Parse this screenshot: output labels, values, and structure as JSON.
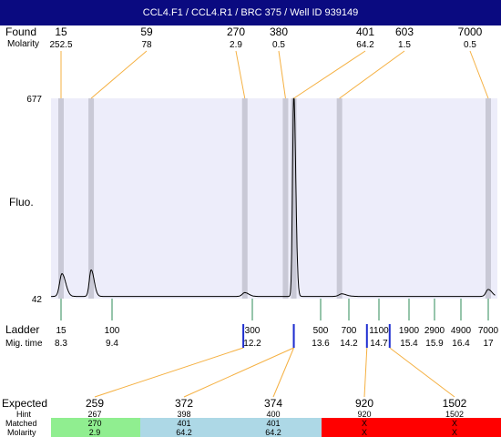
{
  "title": "CCL4.F1 / CCL4.R1 / BRC 375 / Well ID 939149",
  "found_label": "Found",
  "found_molarity_label": "Molarity",
  "fluo_label": "Fluo.",
  "ladder_label": "Ladder",
  "migtime_label": "Mig. time",
  "expected_label": "Expected",
  "hint_label": "Hint",
  "matched_label": "Matched",
  "molarity_label": "Molarity",
  "colors": {
    "title_bg": "#0a0a80",
    "plot_bg": "#ededfa",
    "band": "#c9c9d6",
    "leader": "#f5b041",
    "ladder_tick": "#2e8b57",
    "ladder_marker": "#1f2fd0",
    "matched_green": "#90ee90",
    "matched_blue": "#add8e6",
    "matched_red": "#ff0000",
    "trace": "#000000"
  },
  "chart_data": {
    "type": "line",
    "ylabel": "Fluo.",
    "ylim": [
      42,
      677
    ],
    "found": [
      {
        "size": "15",
        "molarity": "252.5",
        "mig_time": 8.3
      },
      {
        "size": "59",
        "molarity": "78",
        "mig_time": 8.95
      },
      {
        "size": "270",
        "molarity": "2.9",
        "mig_time": 12.05
      },
      {
        "size": "380",
        "molarity": "0.5",
        "mig_time": 12.88
      },
      {
        "size": "401",
        "molarity": "64.2",
        "mig_time": 13.05
      },
      {
        "size": "603",
        "molarity": "1.5",
        "mig_time": 14.0
      },
      {
        "size": "7000",
        "molarity": "0.5",
        "mig_time": 17.0
      }
    ],
    "ladder": [
      {
        "size": "15",
        "mig_time": "8.3"
      },
      {
        "size": "100",
        "mig_time": "9.4"
      },
      {
        "size": "300",
        "mig_time": "12.2"
      },
      {
        "size": "500",
        "mig_time": "13.6"
      },
      {
        "size": "700",
        "mig_time": "14.2"
      },
      {
        "size": "1100",
        "mig_time": "14.7"
      },
      {
        "size": "1900",
        "mig_time": "15.4"
      },
      {
        "size": "2900",
        "mig_time": "15.9"
      },
      {
        "size": "4900",
        "mig_time": "16.4"
      },
      {
        "size": "7000",
        "mig_time": "17"
      }
    ],
    "trace_peaks": [
      {
        "mig_time": 8.32,
        "height": 72,
        "width": 0.05
      },
      {
        "mig_time": 8.95,
        "height": 84,
        "width": 0.04
      },
      {
        "mig_time": 12.05,
        "height": 12,
        "width": 0.05
      },
      {
        "mig_time": 13.05,
        "height": 640,
        "width": 0.025
      },
      {
        "mig_time": 14.05,
        "height": 8,
        "width": 0.06
      },
      {
        "mig_time": 17.0,
        "height": 22,
        "width": 0.05
      }
    ],
    "expected": [
      {
        "size": "259",
        "hint": "267",
        "matched": "270",
        "molarity": "2.9",
        "status": "green",
        "mig_time": 12.02
      },
      {
        "size": "372",
        "hint": "398",
        "matched": "401",
        "molarity": "64.2",
        "status": "blue",
        "mig_time": 13.05
      },
      {
        "size": "374",
        "hint": "400",
        "matched": "401",
        "molarity": "64.2",
        "status": "blue",
        "mig_time": 13.05
      },
      {
        "size": "920",
        "hint": "920",
        "matched": "X",
        "molarity": "X",
        "status": "red",
        "mig_time": 14.5
      },
      {
        "size": "1502",
        "hint": "1502",
        "matched": "X",
        "molarity": "X",
        "status": "red",
        "mig_time": 14.95
      }
    ]
  }
}
